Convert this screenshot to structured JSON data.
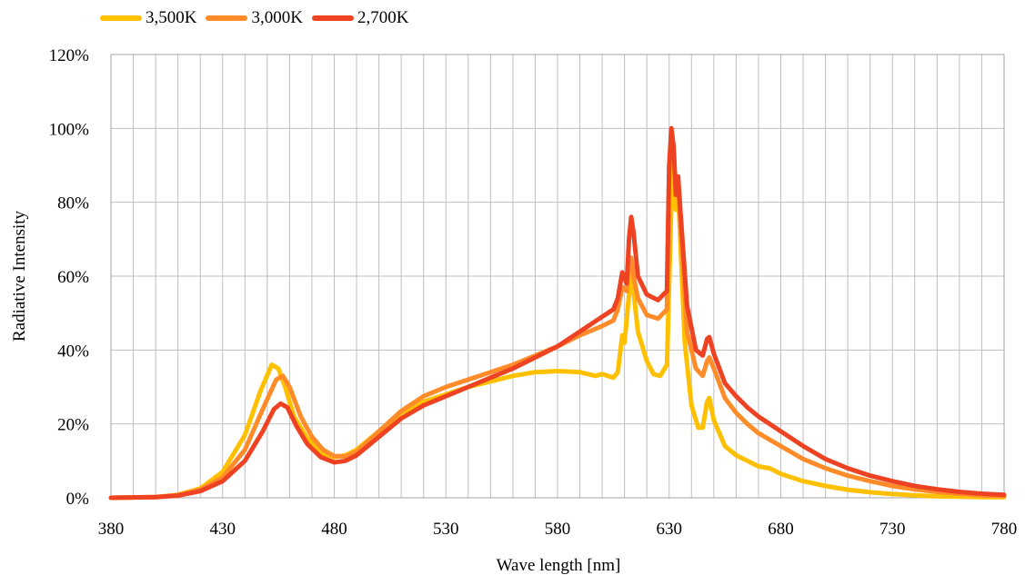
{
  "chart_data": {
    "type": "line",
    "title": "",
    "xlabel": "Wave length [nm]",
    "ylabel": "Radiative Intensity",
    "xlim": [
      380,
      780
    ],
    "ylim": [
      0,
      120
    ],
    "x_ticks": [
      "380",
      "430",
      "480",
      "530",
      "580",
      "630",
      "680",
      "730",
      "780"
    ],
    "y_ticks": [
      "0%",
      "20%",
      "40%",
      "60%",
      "80%",
      "100%",
      "120%"
    ],
    "grid": true,
    "legend_position": "top-left",
    "series": [
      {
        "name": "3,500K",
        "color": "#FFC000",
        "points": [
          [
            380,
            0
          ],
          [
            400,
            0.2
          ],
          [
            410,
            0.8
          ],
          [
            420,
            2.5
          ],
          [
            430,
            7
          ],
          [
            440,
            17
          ],
          [
            447,
            29
          ],
          [
            452,
            36
          ],
          [
            455,
            35
          ],
          [
            458,
            30
          ],
          [
            462,
            22
          ],
          [
            468,
            16
          ],
          [
            475,
            12
          ],
          [
            480,
            11
          ],
          [
            485,
            11.5
          ],
          [
            490,
            13
          ],
          [
            500,
            18
          ],
          [
            510,
            23
          ],
          [
            520,
            26
          ],
          [
            530,
            28
          ],
          [
            540,
            30
          ],
          [
            550,
            31.5
          ],
          [
            560,
            33
          ],
          [
            570,
            34
          ],
          [
            580,
            34.3
          ],
          [
            590,
            34
          ],
          [
            597,
            33
          ],
          [
            600,
            33.5
          ],
          [
            605,
            32.5
          ],
          [
            607,
            34
          ],
          [
            609,
            44
          ],
          [
            610,
            42
          ],
          [
            612,
            55
          ],
          [
            613,
            62
          ],
          [
            614,
            56
          ],
          [
            616,
            45
          ],
          [
            620,
            37
          ],
          [
            623,
            33.5
          ],
          [
            626,
            33
          ],
          [
            629,
            36
          ],
          [
            631,
            80
          ],
          [
            632,
            92
          ],
          [
            633,
            78
          ],
          [
            634,
            83
          ],
          [
            635,
            70
          ],
          [
            637,
            42
          ],
          [
            640,
            25
          ],
          [
            643,
            19
          ],
          [
            645,
            19
          ],
          [
            647,
            26
          ],
          [
            648,
            27
          ],
          [
            650,
            21
          ],
          [
            655,
            14
          ],
          [
            660,
            11.5
          ],
          [
            665,
            10
          ],
          [
            670,
            8.5
          ],
          [
            675,
            8
          ],
          [
            680,
            6.5
          ],
          [
            690,
            4.5
          ],
          [
            700,
            3.2
          ],
          [
            710,
            2.2
          ],
          [
            720,
            1.5
          ],
          [
            730,
            1
          ],
          [
            740,
            0.7
          ],
          [
            750,
            0.4
          ],
          [
            760,
            0.3
          ],
          [
            770,
            0.2
          ],
          [
            780,
            0.2
          ]
        ]
      },
      {
        "name": "3,000K",
        "color": "#FF8C29",
        "points": [
          [
            380,
            0
          ],
          [
            400,
            0.2
          ],
          [
            410,
            0.7
          ],
          [
            420,
            2.2
          ],
          [
            430,
            5.5
          ],
          [
            440,
            13
          ],
          [
            448,
            24
          ],
          [
            454,
            32
          ],
          [
            457,
            33
          ],
          [
            460,
            30
          ],
          [
            465,
            22
          ],
          [
            470,
            16.5
          ],
          [
            475,
            13
          ],
          [
            480,
            11.3
          ],
          [
            485,
            11.2
          ],
          [
            490,
            12.5
          ],
          [
            500,
            18
          ],
          [
            510,
            23.5
          ],
          [
            520,
            27.5
          ],
          [
            530,
            30
          ],
          [
            540,
            32
          ],
          [
            550,
            34
          ],
          [
            560,
            36
          ],
          [
            570,
            38.5
          ],
          [
            580,
            41
          ],
          [
            590,
            44
          ],
          [
            600,
            46.5
          ],
          [
            605,
            48
          ],
          [
            607,
            51
          ],
          [
            609,
            57
          ],
          [
            611,
            56
          ],
          [
            612,
            64
          ],
          [
            613,
            65
          ],
          [
            614,
            60
          ],
          [
            616,
            54
          ],
          [
            620,
            49.5
          ],
          [
            625,
            48.5
          ],
          [
            629,
            51
          ],
          [
            630,
            90
          ],
          [
            631,
            94
          ],
          [
            632,
            90
          ],
          [
            633,
            86
          ],
          [
            634,
            85
          ],
          [
            635,
            75
          ],
          [
            638,
            45
          ],
          [
            642,
            35
          ],
          [
            645,
            33
          ],
          [
            647,
            37
          ],
          [
            648,
            38
          ],
          [
            650,
            35
          ],
          [
            655,
            27
          ],
          [
            660,
            23
          ],
          [
            665,
            20
          ],
          [
            670,
            17.5
          ],
          [
            680,
            14
          ],
          [
            690,
            10.5
          ],
          [
            700,
            8
          ],
          [
            710,
            6
          ],
          [
            720,
            4.5
          ],
          [
            730,
            3.2
          ],
          [
            740,
            2.3
          ],
          [
            750,
            1.6
          ],
          [
            760,
            1.1
          ],
          [
            770,
            0.7
          ],
          [
            780,
            0.5
          ]
        ]
      },
      {
        "name": "2,700K",
        "color": "#EE4322",
        "points": [
          [
            380,
            0
          ],
          [
            400,
            0.2
          ],
          [
            410,
            0.6
          ],
          [
            420,
            1.8
          ],
          [
            430,
            4.5
          ],
          [
            440,
            10
          ],
          [
            448,
            18
          ],
          [
            453,
            24
          ],
          [
            456,
            25.5
          ],
          [
            459,
            24.5
          ],
          [
            463,
            19.5
          ],
          [
            468,
            14.5
          ],
          [
            474,
            11
          ],
          [
            480,
            9.6
          ],
          [
            485,
            10
          ],
          [
            490,
            11.5
          ],
          [
            500,
            16.5
          ],
          [
            510,
            21.5
          ],
          [
            520,
            25
          ],
          [
            530,
            27.5
          ],
          [
            540,
            30
          ],
          [
            550,
            32.5
          ],
          [
            560,
            35
          ],
          [
            570,
            38
          ],
          [
            580,
            41
          ],
          [
            590,
            45
          ],
          [
            600,
            49
          ],
          [
            605,
            51
          ],
          [
            607,
            54
          ],
          [
            609,
            61
          ],
          [
            611,
            58
          ],
          [
            612,
            70
          ],
          [
            613,
            76
          ],
          [
            614,
            72
          ],
          [
            616,
            60
          ],
          [
            620,
            55
          ],
          [
            625,
            53.5
          ],
          [
            629,
            56
          ],
          [
            630,
            90
          ],
          [
            631,
            100
          ],
          [
            632,
            95
          ],
          [
            633,
            82
          ],
          [
            634,
            87
          ],
          [
            635,
            78
          ],
          [
            638,
            52
          ],
          [
            642,
            40
          ],
          [
            645,
            38.5
          ],
          [
            647,
            43
          ],
          [
            648,
            43.5
          ],
          [
            650,
            39
          ],
          [
            655,
            31
          ],
          [
            660,
            27.5
          ],
          [
            665,
            24.5
          ],
          [
            670,
            22
          ],
          [
            680,
            18
          ],
          [
            690,
            14
          ],
          [
            700,
            10.5
          ],
          [
            710,
            8
          ],
          [
            720,
            6
          ],
          [
            730,
            4.5
          ],
          [
            740,
            3.2
          ],
          [
            750,
            2.3
          ],
          [
            760,
            1.6
          ],
          [
            770,
            1.1
          ],
          [
            780,
            0.8
          ]
        ]
      }
    ]
  }
}
